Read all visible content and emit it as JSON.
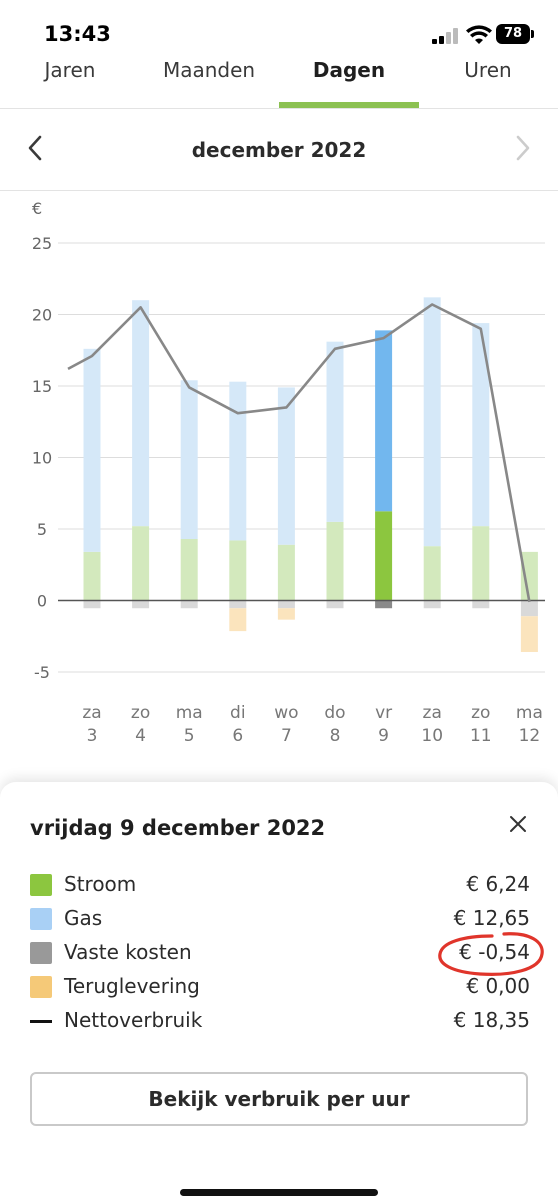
{
  "status_bar": {
    "time": "13:43",
    "battery": "78"
  },
  "tabs": [
    {
      "label": "Jaren"
    },
    {
      "label": "Maanden"
    },
    {
      "label": "Dagen",
      "active": true
    },
    {
      "label": "Uren"
    }
  ],
  "month_nav": {
    "title": "december 2022"
  },
  "chart_data": {
    "type": "bar",
    "ylabel": "€",
    "ylim": [
      -5,
      25
    ],
    "y_ticks": [
      -5,
      0,
      5,
      10,
      15,
      20,
      25
    ],
    "categories": [
      {
        "day": "za",
        "date": "3"
      },
      {
        "day": "zo",
        "date": "4"
      },
      {
        "day": "ma",
        "date": "5"
      },
      {
        "day": "di",
        "date": "6"
      },
      {
        "day": "wo",
        "date": "7"
      },
      {
        "day": "do",
        "date": "8"
      },
      {
        "day": "vr",
        "date": "9"
      },
      {
        "day": "za",
        "date": "10"
      },
      {
        "day": "zo",
        "date": "11"
      },
      {
        "day": "ma",
        "date": "12"
      }
    ],
    "selected_index": 6,
    "series": [
      {
        "name": "Stroom",
        "color": "#8cc63f",
        "values": [
          3.4,
          5.2,
          4.3,
          4.2,
          3.9,
          5.5,
          6.24,
          3.8,
          5.2,
          3.4
        ]
      },
      {
        "name": "Gas",
        "color": "#72b7ee",
        "values": [
          14.2,
          15.8,
          11.1,
          11.1,
          11.0,
          12.6,
          12.65,
          17.4,
          14.2,
          0
        ]
      },
      {
        "name": "Vaste kosten",
        "color": "#8a8a8a",
        "values": [
          -0.54,
          -0.54,
          -0.54,
          -0.54,
          -0.54,
          -0.54,
          -0.54,
          -0.54,
          -0.54,
          -1.1
        ]
      },
      {
        "name": "Teruglevering",
        "color": "#f5c978",
        "values": [
          0,
          0,
          0,
          -1.6,
          -0.8,
          0,
          0,
          0,
          0,
          -2.5
        ]
      },
      {
        "name": "Nettoverbruik",
        "color": "#888888",
        "type": "line",
        "values": [
          17.1,
          20.5,
          14.9,
          13.1,
          13.5,
          17.6,
          18.35,
          20.7,
          19.0,
          -0.1
        ]
      }
    ]
  },
  "detail": {
    "title": "vrijdag 9 december 2022",
    "items": [
      {
        "label": "Stroom",
        "value": "€ 6,24",
        "color": "#8cc63f"
      },
      {
        "label": "Gas",
        "value": "€ 12,65",
        "color": "#a9d0f5"
      },
      {
        "label": "Vaste kosten",
        "value": "€ -0,54",
        "color": "#999999"
      },
      {
        "label": "Teruglevering",
        "value": "€ 0,00",
        "color": "#f5c978"
      },
      {
        "label": "Nettoverbruik",
        "value": "€ 18,35",
        "color": "#111111"
      }
    ],
    "button_label": "Bekijk verbruik per uur",
    "annotation_color": "#e0352b"
  }
}
